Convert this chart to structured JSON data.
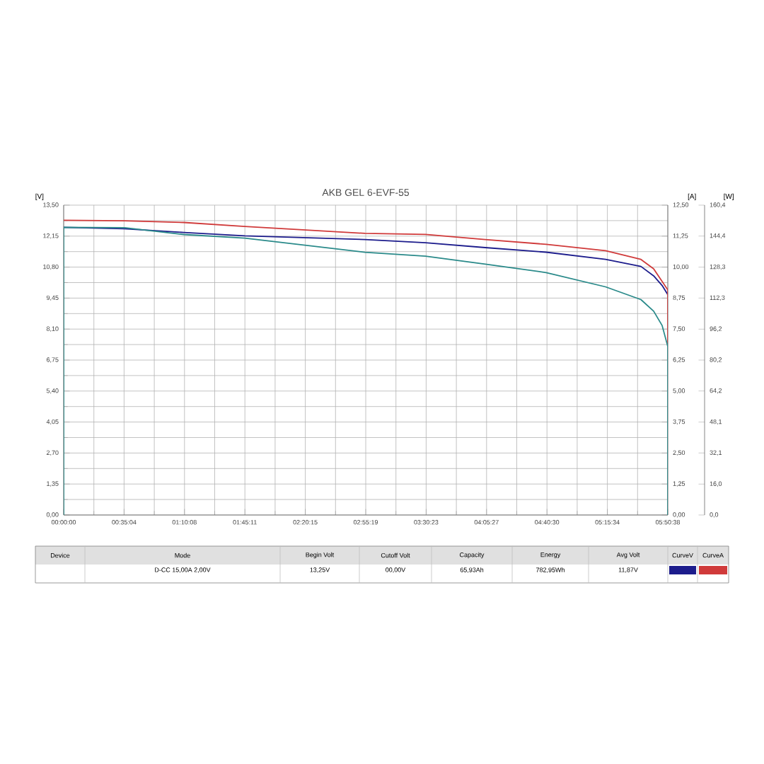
{
  "chart_data": {
    "type": "line",
    "title": "AKB GEL 6-EVF-55",
    "ylabel": "[V]",
    "y2label": "[A]",
    "y3label": "[W]",
    "x": [
      0,
      0.588,
      1.163,
      1.752,
      2.915,
      3.5,
      4.078,
      4.667,
      5.242,
      5.584,
      5.707,
      5.789,
      5.8439
    ],
    "series": [
      {
        "name": "CurveV",
        "color": "#1c1c8c",
        "values": [
          12.53,
          12.47,
          12.31,
          12.16,
          12.0,
          11.86,
          11.65,
          11.45,
          11.14,
          10.83,
          10.42,
          10.0,
          9.6
        ]
      },
      {
        "name": "CurveA",
        "color": "#d03a3a",
        "axis": "y2",
        "x": [
          0,
          0.588,
          1.163,
          1.752,
          2.915,
          3.5,
          4.078,
          4.667,
          5.242,
          5.584,
          5.707,
          5.8439,
          5.8439
        ],
        "values": [
          11.89,
          11.87,
          11.8,
          11.64,
          11.36,
          11.32,
          11.11,
          10.92,
          10.66,
          10.31,
          9.93,
          9.08,
          6.89
        ]
      },
      {
        "color": "#2a8a8a",
        "axis": "y3",
        "x": [
          0,
          0,
          0.588,
          1.163,
          1.752,
          2.915,
          3.5,
          4.078,
          4.667,
          5.242,
          5.584,
          5.707,
          5.789,
          5.8439,
          5.8439
        ],
        "values": [
          0,
          148.9,
          148.7,
          145.2,
          143.3,
          136.0,
          134.0,
          129.9,
          125.5,
          118.1,
          111.5,
          105.5,
          98.1,
          87.2,
          0
        ]
      }
    ],
    "xlim": [
      0,
      5.8439
    ],
    "xticks": [
      {
        "value": 0,
        "label": "00:00:00"
      },
      {
        "value": 0.58439,
        "label": "00:35:04"
      },
      {
        "value": 1.16878,
        "label": "01:10:08"
      },
      {
        "value": 1.75317,
        "label": "01:45:11"
      },
      {
        "value": 2.33756,
        "label": "02:20:15"
      },
      {
        "value": 2.92195,
        "label": "02:55:19"
      },
      {
        "value": 3.50634,
        "label": "03:30:23"
      },
      {
        "value": 4.09073,
        "label": "04:05:27"
      },
      {
        "value": 4.67512,
        "label": "04:40:30"
      },
      {
        "value": 5.25951,
        "label": "05:15:34"
      },
      {
        "value": 5.8439,
        "label": "05:50:38"
      }
    ],
    "ylim": [
      0,
      13.5
    ],
    "yticks": [
      {
        "value": 0,
        "label": "0,00"
      },
      {
        "value": 1.35,
        "label": "1,35"
      },
      {
        "value": 2.7,
        "label": "2,70"
      },
      {
        "value": 4.05,
        "label": "4,05"
      },
      {
        "value": 5.4,
        "label": "5,40"
      },
      {
        "value": 6.75,
        "label": "6,75"
      },
      {
        "value": 8.1,
        "label": "8,10"
      },
      {
        "value": 9.45,
        "label": "9,45"
      },
      {
        "value": 10.8,
        "label": "10,80"
      },
      {
        "value": 12.15,
        "label": "12,15"
      },
      {
        "value": 13.5,
        "label": "13,50"
      }
    ],
    "y2lim": [
      0,
      12.5
    ],
    "y2ticks": [
      {
        "value": 0,
        "label": "0,00"
      },
      {
        "value": 1.25,
        "label": "1,25"
      },
      {
        "value": 2.5,
        "label": "2,50"
      },
      {
        "value": 3.75,
        "label": "3,75"
      },
      {
        "value": 5,
        "label": "5,00"
      },
      {
        "value": 6.25,
        "label": "6,25"
      },
      {
        "value": 7.5,
        "label": "7,50"
      },
      {
        "value": 8.75,
        "label": "8,75"
      },
      {
        "value": 10,
        "label": "10,00"
      },
      {
        "value": 11.25,
        "label": "11,25"
      },
      {
        "value": 12.5,
        "label": "12,50"
      }
    ],
    "y3lim": [
      0,
      160.4
    ],
    "y3ticks": [
      {
        "value": 0,
        "label": "0,0"
      },
      {
        "value": 16.0,
        "label": "16,0"
      },
      {
        "value": 32.1,
        "label": "32,1"
      },
      {
        "value": 48.1,
        "label": "48,1"
      },
      {
        "value": 64.2,
        "label": "64,2"
      },
      {
        "value": 80.2,
        "label": "80,2"
      },
      {
        "value": 96.2,
        "label": "96,2"
      },
      {
        "value": 112.3,
        "label": "112,3"
      },
      {
        "value": 128.3,
        "label": "128,3"
      },
      {
        "value": 144.4,
        "label": "144,4"
      },
      {
        "value": 160.4,
        "label": "160,4"
      }
    ],
    "grid": true,
    "legend": "bottom",
    "line_style": "solid",
    "marker": "none",
    "annotations": [
      "Device",
      "Mode",
      "Begin Volt",
      "Cutoff Volt",
      "Capacity",
      "Energy",
      "Avg Volt",
      "D-CC 15,00A 2,00V",
      "13,25V",
      "00,00V",
      "65,93Ah",
      "782,95Wh",
      "11,87V"
    ]
  }
}
